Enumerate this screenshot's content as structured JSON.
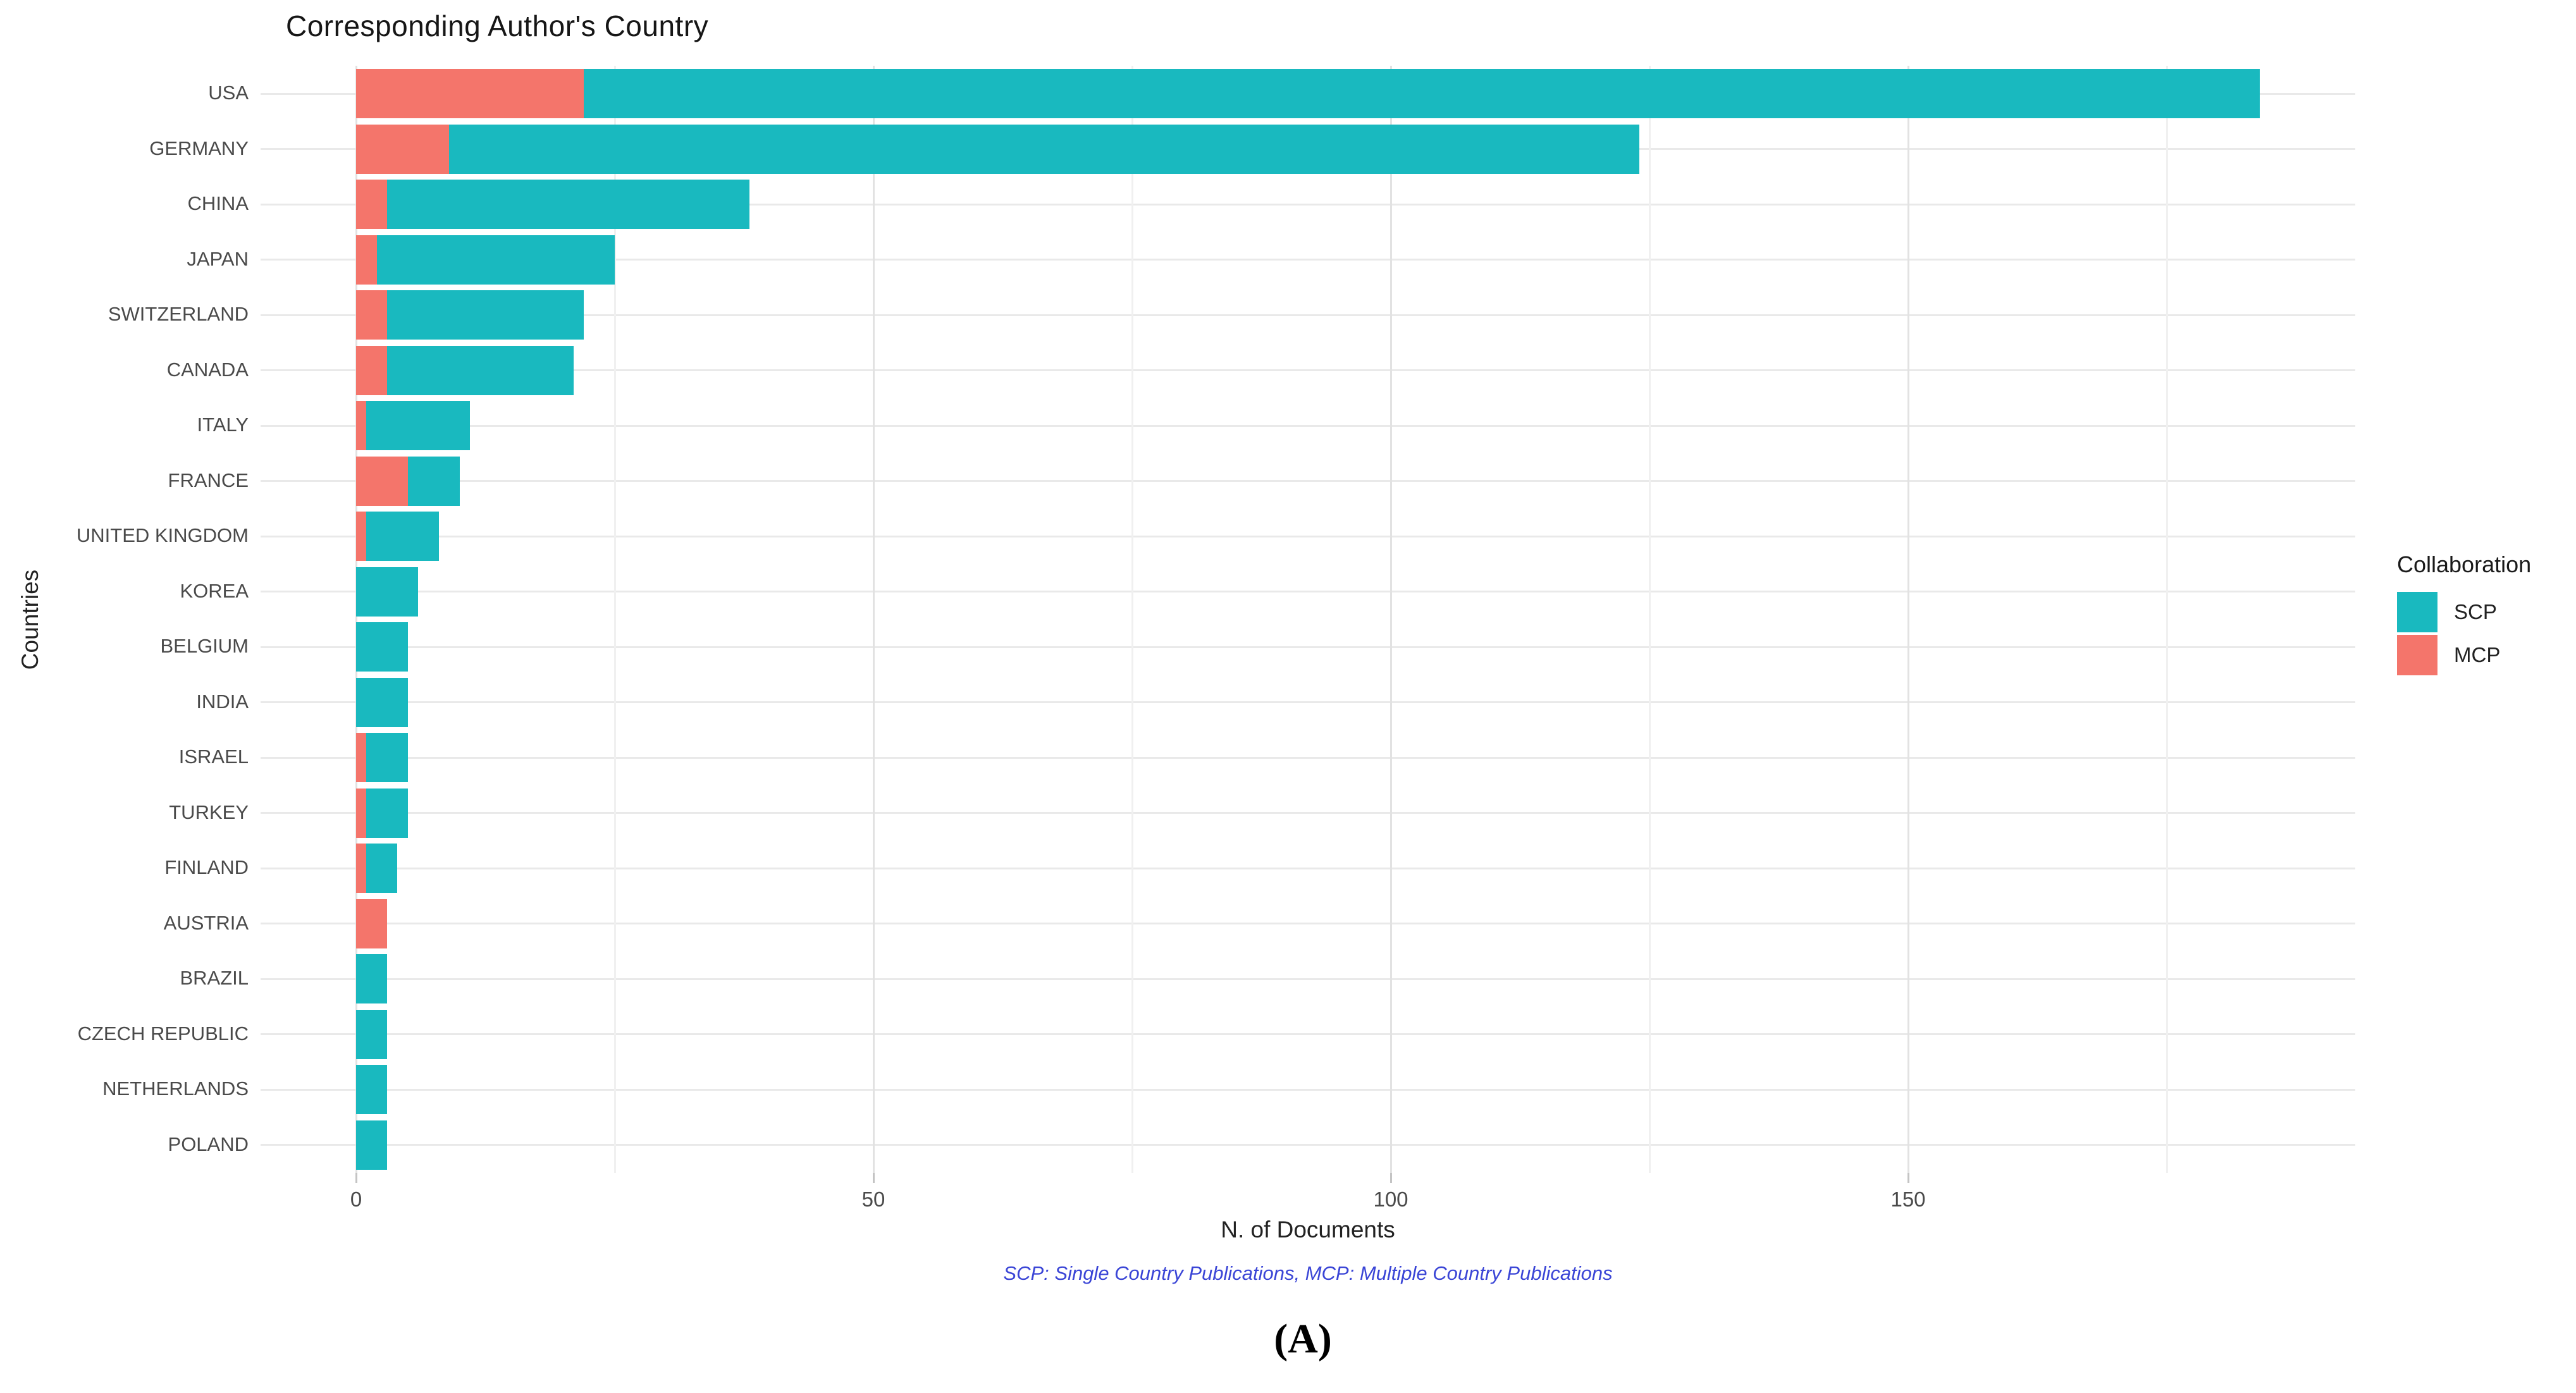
{
  "figure": {
    "title": "Corresponding Author's Country",
    "x_axis_label": "N. of Documents",
    "y_axis_label": "Countries",
    "caption": "SCP: Single Country Publications, MCP: Multiple Country Publications",
    "panel_label": "(A)"
  },
  "legend": {
    "title": "Collaboration",
    "items": [
      {
        "label": "SCP",
        "color": "#19b9bf"
      },
      {
        "label": "MCP",
        "color": "#f4756b"
      }
    ]
  },
  "colors": {
    "scp": "#19b9bf",
    "mcp": "#f4756b",
    "grid_major": "#e2e2e2",
    "grid_minor": "#f0f0f0",
    "axis_text": "#4a4a4a",
    "caption_blue": "#3a45d6"
  },
  "chart_data": {
    "type": "bar",
    "orientation": "horizontal",
    "stacked": true,
    "title": "Corresponding Author's Country",
    "xlabel": "N. of Documents",
    "ylabel": "Countries",
    "legend_title": "Collaboration",
    "legend_position": "right",
    "grid": true,
    "categories": [
      "USA",
      "GERMANY",
      "CHINA",
      "JAPAN",
      "SWITZERLAND",
      "CANADA",
      "ITALY",
      "FRANCE",
      "UNITED KINGDOM",
      "KOREA",
      "BELGIUM",
      "INDIA",
      "ISRAEL",
      "TURKEY",
      "FINLAND",
      "AUSTRIA",
      "BRAZIL",
      "CZECH REPUBLIC",
      "NETHERLANDS",
      "POLAND"
    ],
    "series": [
      {
        "name": "MCP",
        "color": "#f4756b",
        "stack_position": "left",
        "values": [
          22,
          9,
          3,
          2,
          3,
          3,
          1,
          5,
          1,
          0,
          0,
          0,
          1,
          1,
          1,
          3,
          0,
          0,
          0,
          0
        ]
      },
      {
        "name": "SCP",
        "color": "#19b9bf",
        "stack_position": "right",
        "values": [
          162,
          115,
          35,
          23,
          19,
          18,
          10,
          5,
          7,
          6,
          5,
          5,
          4,
          4,
          3,
          0,
          3,
          3,
          3,
          3
        ]
      }
    ],
    "totals": [
      184,
      124,
      38,
      25,
      22,
      21,
      11,
      10,
      8,
      6,
      5,
      5,
      5,
      5,
      4,
      3,
      3,
      3,
      3,
      3
    ],
    "x_ticks": [
      0,
      50,
      100,
      150
    ],
    "x_tick_labels": [
      "0",
      "50",
      "100",
      "150"
    ],
    "x_minor_ticks": [
      25,
      75,
      125,
      175
    ],
    "xlim": [
      0,
      193
    ]
  }
}
